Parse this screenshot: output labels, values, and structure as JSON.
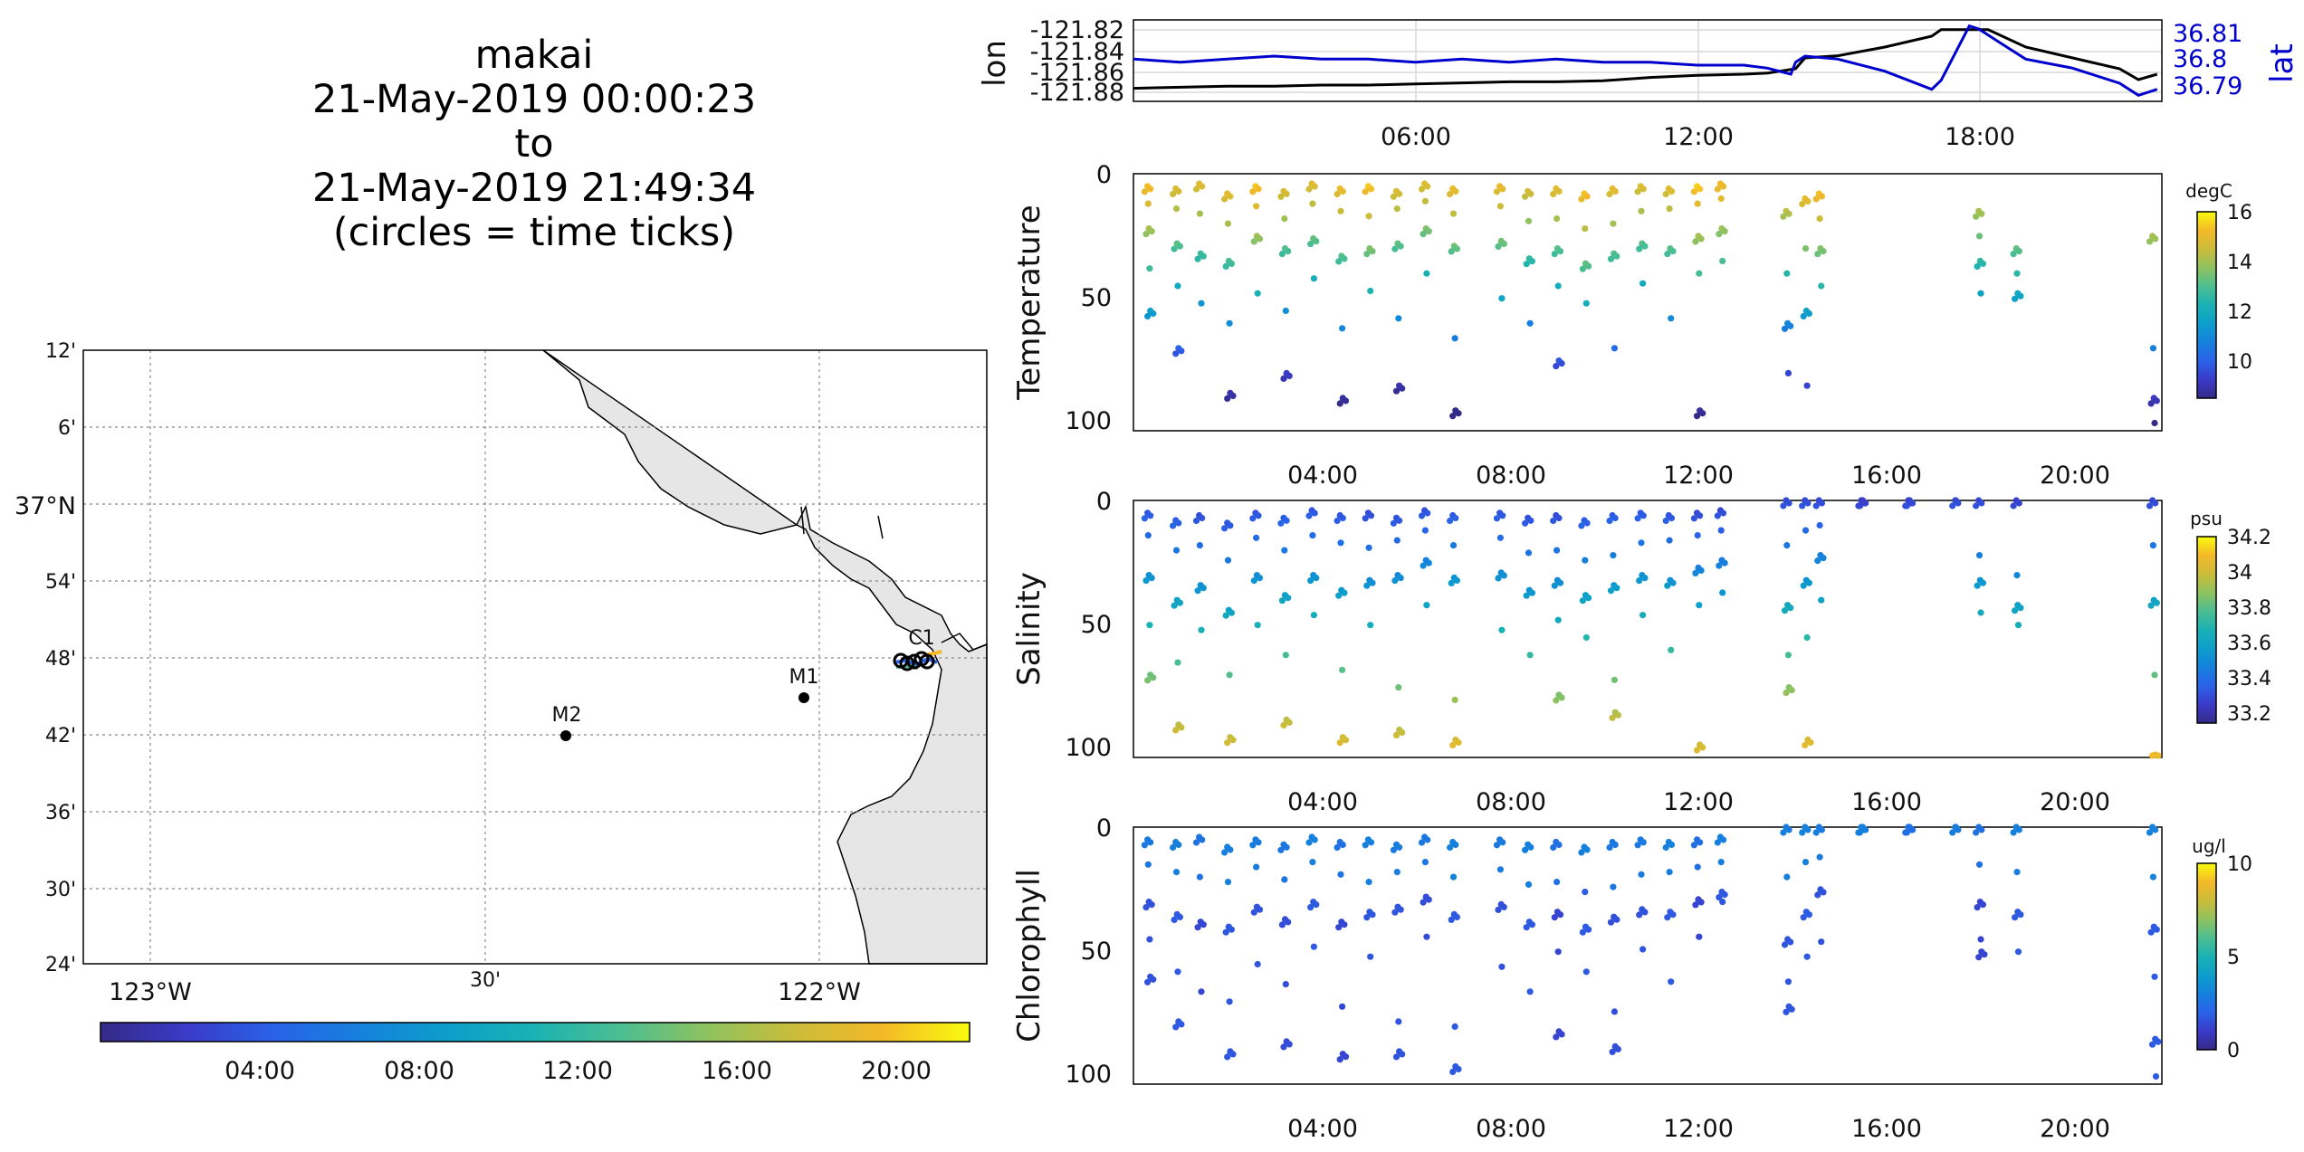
{
  "title": {
    "lines": [
      "makai",
      "21-May-2019 00:00:23",
      "to",
      "21-May-2019 21:49:34",
      "(circles = time ticks)"
    ]
  },
  "colormap": [
    "#352a87",
    "#3a3bc8",
    "#2a62e8",
    "#1581dc",
    "#0d9ecb",
    "#1bb2b3",
    "#4cbe91",
    "#8fc25f",
    "#cbbc3a",
    "#f3b928",
    "#f9fb0e"
  ],
  "map": {
    "lat_ticks": [
      "12'",
      "6'",
      "37°N",
      "54'",
      "48'",
      "42'",
      "36'",
      "30'",
      "24'"
    ],
    "lon_ticks": [
      "123°W",
      "30'",
      "122°W"
    ],
    "stations": [
      {
        "name": "M2",
        "lon": -122.39,
        "lat": 36.7
      },
      {
        "name": "M1",
        "lon": -122.03,
        "lat": 36.75
      },
      {
        "name": "C1",
        "lon": -121.85,
        "lat": 36.8
      }
    ]
  },
  "time_colorbar": {
    "ticks": [
      "04:00",
      "08:00",
      "12:00",
      "16:00",
      "20:00"
    ]
  },
  "chart_data": [
    {
      "type": "line",
      "id": "navigation",
      "x_unit": "hours since 21-May-2019 00:00",
      "ylabel": "lon",
      "ylabel_right": "lat",
      "ylim": [
        -121.89,
        -121.815
      ],
      "ylim_right": [
        36.786,
        36.813
      ],
      "y_ticks": [
        "-121.82",
        "-121.84",
        "-121.86",
        "-121.88"
      ],
      "y_ticks_right": [
        "36.81",
        "36.8",
        "36.79"
      ],
      "x_ticks": [
        "06:00",
        "12:00",
        "18:00"
      ],
      "series": [
        {
          "name": "lon",
          "color": "#000000",
          "x": [
            0,
            1,
            2,
            3,
            4,
            5,
            6,
            7,
            8,
            9,
            10,
            11,
            12,
            13,
            13.5,
            14.1,
            14.3,
            15,
            16,
            17,
            17.2,
            18,
            18.2,
            19,
            20,
            21,
            21.4,
            21.8
          ],
          "y": [
            -121.878,
            -121.877,
            -121.876,
            -121.876,
            -121.875,
            -121.875,
            -121.874,
            -121.873,
            -121.872,
            -121.872,
            -121.871,
            -121.868,
            -121.866,
            -121.865,
            -121.864,
            -121.86,
            -121.85,
            -121.848,
            -121.84,
            -121.83,
            -121.824,
            -121.824,
            -121.824,
            -121.84,
            -121.85,
            -121.86,
            -121.87,
            -121.865
          ]
        },
        {
          "name": "lat",
          "color": "#0000cc",
          "x": [
            0,
            1,
            2,
            3,
            4,
            5,
            6,
            7,
            8,
            9,
            10,
            11,
            12,
            13,
            13.5,
            14,
            14.1,
            14.3,
            15,
            16,
            17,
            17.2,
            17.8,
            18,
            18.5,
            19,
            20,
            21,
            21.4,
            21.8
          ],
          "y": [
            36.8,
            36.799,
            36.8,
            36.801,
            36.8,
            36.8,
            36.799,
            36.8,
            36.799,
            36.8,
            36.799,
            36.799,
            36.798,
            36.798,
            36.797,
            36.795,
            36.799,
            36.801,
            36.8,
            36.796,
            36.79,
            36.793,
            36.811,
            36.81,
            36.805,
            36.8,
            36.797,
            36.792,
            36.788,
            36.79
          ]
        }
      ]
    },
    {
      "type": "scatter",
      "id": "temperature",
      "ylabel": "Temperature",
      "x_ticks": [
        "04:00",
        "08:00",
        "12:00",
        "16:00",
        "20:00"
      ],
      "y_ticks": [
        "0",
        "50",
        "100"
      ],
      "ylim": [
        100,
        0
      ],
      "colorbar": {
        "unit": "degC",
        "min": 8.5,
        "max": 16,
        "ticks": [
          "16",
          "14",
          "12",
          "10"
        ]
      },
      "casts": [
        {
          "x": 0.3,
          "depths": [
            5,
            12,
            22,
            38,
            55
          ]
        },
        {
          "x": 0.9,
          "depths": [
            6,
            14,
            28,
            45,
            70
          ]
        },
        {
          "x": 1.4,
          "depths": [
            4,
            16,
            32,
            52
          ]
        },
        {
          "x": 2.0,
          "depths": [
            8,
            20,
            35,
            60,
            88
          ]
        },
        {
          "x": 2.6,
          "depths": [
            5,
            13,
            25,
            48
          ]
        },
        {
          "x": 3.2,
          "depths": [
            7,
            18,
            30,
            55,
            80
          ]
        },
        {
          "x": 3.8,
          "depths": [
            4,
            12,
            26,
            42
          ]
        },
        {
          "x": 4.4,
          "depths": [
            6,
            15,
            33,
            62,
            90
          ]
        },
        {
          "x": 5.0,
          "depths": [
            5,
            17,
            30,
            47
          ]
        },
        {
          "x": 5.6,
          "depths": [
            7,
            14,
            28,
            58,
            85
          ]
        },
        {
          "x": 6.2,
          "depths": [
            4,
            11,
            22,
            40
          ]
        },
        {
          "x": 6.8,
          "depths": [
            6,
            16,
            29,
            66,
            95
          ]
        },
        {
          "x": 7.8,
          "depths": [
            5,
            13,
            27,
            50
          ]
        },
        {
          "x": 8.4,
          "depths": [
            7,
            19,
            34,
            60
          ]
        },
        {
          "x": 9.0,
          "depths": [
            6,
            18,
            30,
            45,
            75
          ]
        },
        {
          "x": 9.6,
          "depths": [
            8,
            22,
            36,
            52
          ]
        },
        {
          "x": 10.2,
          "depths": [
            6,
            20,
            32,
            70
          ]
        },
        {
          "x": 10.8,
          "depths": [
            5,
            15,
            28,
            44
          ]
        },
        {
          "x": 11.4,
          "depths": [
            6,
            14,
            30,
            58
          ]
        },
        {
          "x": 12.0,
          "depths": [
            5,
            12,
            25,
            40,
            95
          ]
        },
        {
          "x": 12.5,
          "depths": [
            4,
            10,
            22,
            35
          ]
        },
        {
          "x": 13.9,
          "depths": [
            15,
            40,
            60,
            80
          ]
        },
        {
          "x": 14.3,
          "depths": [
            10,
            30,
            55,
            85
          ]
        },
        {
          "x": 14.6,
          "depths": [
            8,
            18,
            30,
            45
          ]
        },
        {
          "x": 18.0,
          "depths": [
            15,
            25,
            35,
            48
          ]
        },
        {
          "x": 18.8,
          "depths": [
            30,
            40,
            48
          ]
        },
        {
          "x": 21.7,
          "depths": [
            25,
            70,
            90,
            100
          ]
        }
      ]
    },
    {
      "type": "scatter",
      "id": "salinity",
      "ylabel": "Salinity",
      "x_ticks": [
        "04:00",
        "08:00",
        "12:00",
        "16:00",
        "20:00"
      ],
      "y_ticks": [
        "0",
        "50",
        "100"
      ],
      "ylim": [
        100,
        0
      ],
      "colorbar": {
        "unit": "psu",
        "min": 33.15,
        "max": 34.25,
        "ticks": [
          "34.2",
          "34",
          "33.8",
          "33.6",
          "33.4",
          "33.2"
        ]
      },
      "casts": [
        {
          "x": 0.3,
          "depths": [
            5,
            14,
            30,
            50,
            70
          ]
        },
        {
          "x": 0.9,
          "depths": [
            8,
            20,
            40,
            65,
            90
          ]
        },
        {
          "x": 1.4,
          "depths": [
            6,
            18,
            34,
            52
          ]
        },
        {
          "x": 2.0,
          "depths": [
            9,
            24,
            44,
            70,
            95
          ]
        },
        {
          "x": 2.6,
          "depths": [
            5,
            15,
            30,
            50
          ]
        },
        {
          "x": 3.2,
          "depths": [
            7,
            20,
            38,
            62,
            88
          ]
        },
        {
          "x": 3.8,
          "depths": [
            4,
            14,
            30,
            46
          ]
        },
        {
          "x": 4.4,
          "depths": [
            6,
            17,
            36,
            68,
            95
          ]
        },
        {
          "x": 5.0,
          "depths": [
            5,
            19,
            32,
            50
          ]
        },
        {
          "x": 5.6,
          "depths": [
            7,
            16,
            30,
            75,
            92
          ]
        },
        {
          "x": 6.2,
          "depths": [
            4,
            12,
            24,
            42
          ]
        },
        {
          "x": 6.8,
          "depths": [
            6,
            18,
            31,
            80,
            96
          ]
        },
        {
          "x": 7.8,
          "depths": [
            5,
            15,
            29,
            52
          ]
        },
        {
          "x": 8.4,
          "depths": [
            7,
            21,
            36,
            62
          ]
        },
        {
          "x": 9.0,
          "depths": [
            6,
            20,
            32,
            48,
            78
          ]
        },
        {
          "x": 9.6,
          "depths": [
            8,
            24,
            38,
            55
          ]
        },
        {
          "x": 10.2,
          "depths": [
            6,
            22,
            34,
            72,
            85
          ]
        },
        {
          "x": 10.8,
          "depths": [
            5,
            17,
            30,
            46
          ]
        },
        {
          "x": 11.4,
          "depths": [
            6,
            16,
            32,
            60
          ]
        },
        {
          "x": 12.0,
          "depths": [
            5,
            14,
            27,
            42,
            98
          ]
        },
        {
          "x": 12.5,
          "depths": [
            4,
            12,
            24,
            37
          ]
        },
        {
          "x": 13.9,
          "depths": [
            0,
            18,
            42,
            62,
            75
          ]
        },
        {
          "x": 14.3,
          "depths": [
            0,
            12,
            32,
            55,
            96
          ]
        },
        {
          "x": 14.6,
          "depths": [
            0,
            10,
            22,
            40
          ]
        },
        {
          "x": 15.5,
          "depths": [
            0,
            0,
            0
          ]
        },
        {
          "x": 16.5,
          "depths": [
            0,
            0,
            0
          ]
        },
        {
          "x": 17.5,
          "depths": [
            0,
            0
          ]
        },
        {
          "x": 18.0,
          "depths": [
            0,
            22,
            32,
            45
          ]
        },
        {
          "x": 18.8,
          "depths": [
            0,
            30,
            42,
            50
          ]
        },
        {
          "x": 21.7,
          "depths": [
            0,
            18,
            40,
            70,
            102
          ]
        }
      ]
    },
    {
      "type": "scatter",
      "id": "chlorophyll",
      "ylabel": "Chlorophyll",
      "x_ticks": [
        "04:00",
        "08:00",
        "12:00",
        "16:00",
        "20:00"
      ],
      "y_ticks": [
        "0",
        "50",
        "100"
      ],
      "ylim": [
        100,
        0
      ],
      "colorbar": {
        "unit": "ug/l",
        "min": 0,
        "max": 10,
        "ticks": [
          "10",
          "5",
          "0"
        ]
      },
      "casts": [
        {
          "x": 0.3,
          "depths": [
            5,
            15,
            30,
            45,
            60
          ]
        },
        {
          "x": 0.9,
          "depths": [
            6,
            18,
            35,
            58,
            78
          ]
        },
        {
          "x": 1.4,
          "depths": [
            4,
            20,
            38,
            66
          ]
        },
        {
          "x": 2.0,
          "depths": [
            8,
            22,
            40,
            70,
            90
          ]
        },
        {
          "x": 2.6,
          "depths": [
            5,
            16,
            32,
            55
          ]
        },
        {
          "x": 3.2,
          "depths": [
            7,
            21,
            37,
            63,
            86
          ]
        },
        {
          "x": 3.8,
          "depths": [
            4,
            14,
            30,
            48
          ]
        },
        {
          "x": 4.4,
          "depths": [
            6,
            19,
            38,
            72,
            91
          ]
        },
        {
          "x": 5.0,
          "depths": [
            5,
            22,
            34,
            52
          ]
        },
        {
          "x": 5.6,
          "depths": [
            7,
            18,
            32,
            78,
            90
          ]
        },
        {
          "x": 6.2,
          "depths": [
            4,
            14,
            28,
            44
          ]
        },
        {
          "x": 6.8,
          "depths": [
            6,
            20,
            35,
            80,
            96
          ]
        },
        {
          "x": 7.8,
          "depths": [
            5,
            17,
            31,
            56
          ]
        },
        {
          "x": 8.4,
          "depths": [
            7,
            23,
            38,
            66
          ]
        },
        {
          "x": 9.0,
          "depths": [
            6,
            22,
            34,
            50,
            82
          ]
        },
        {
          "x": 9.6,
          "depths": [
            8,
            26,
            40,
            58
          ]
        },
        {
          "x": 10.2,
          "depths": [
            6,
            24,
            36,
            74,
            88
          ]
        },
        {
          "x": 10.8,
          "depths": [
            5,
            19,
            33,
            49
          ]
        },
        {
          "x": 11.4,
          "depths": [
            6,
            18,
            34,
            62
          ]
        },
        {
          "x": 12.0,
          "depths": [
            5,
            16,
            29,
            44
          ]
        },
        {
          "x": 12.5,
          "depths": [
            4,
            14,
            26,
            30
          ]
        },
        {
          "x": 13.9,
          "depths": [
            0,
            20,
            45,
            62,
            72
          ]
        },
        {
          "x": 14.3,
          "depths": [
            0,
            14,
            34,
            52
          ]
        },
        {
          "x": 14.6,
          "depths": [
            0,
            12,
            25,
            46
          ]
        },
        {
          "x": 15.5,
          "depths": [
            0,
            0,
            0
          ]
        },
        {
          "x": 16.5,
          "depths": [
            0,
            0,
            0
          ]
        },
        {
          "x": 17.5,
          "depths": [
            0,
            0
          ]
        },
        {
          "x": 18.0,
          "depths": [
            0,
            15,
            30,
            45,
            50
          ]
        },
        {
          "x": 18.8,
          "depths": [
            0,
            18,
            34,
            50
          ]
        },
        {
          "x": 21.7,
          "depths": [
            0,
            20,
            40,
            60,
            85,
            100
          ]
        }
      ]
    }
  ]
}
